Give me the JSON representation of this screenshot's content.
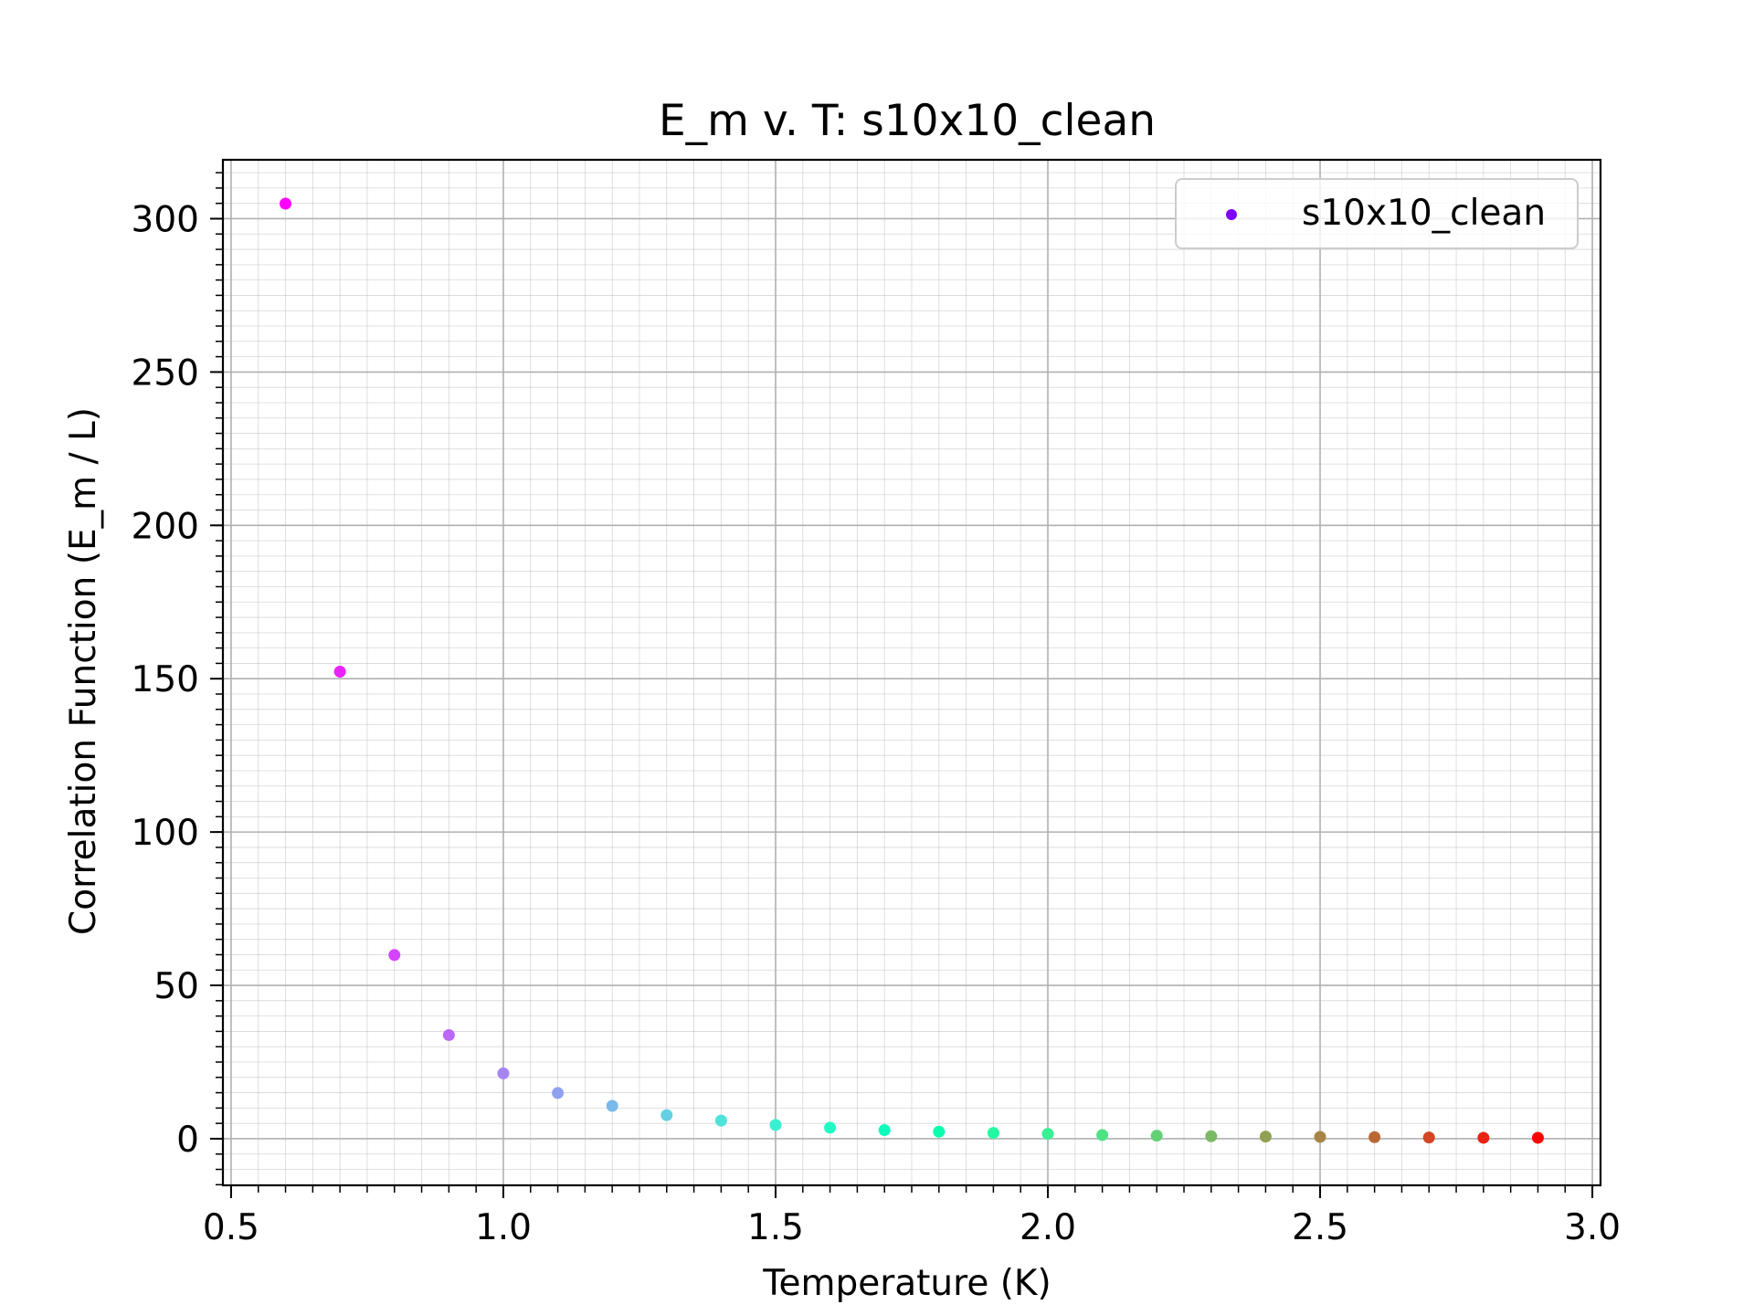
{
  "chart_data": {
    "type": "scatter",
    "title": "E_m v. T: s10x10_clean",
    "xlabel": "Temperature (K)",
    "ylabel": "Correlation Function (E_m / L)",
    "xlim": [
      0.485,
      3.015
    ],
    "ylim": [
      -15.2,
      319.2
    ],
    "xticks": [
      0.5,
      1.0,
      1.5,
      2.0,
      2.5,
      3.0
    ],
    "xtick_labels": [
      "0.5",
      "1.0",
      "1.5",
      "2.0",
      "2.5",
      "3.0"
    ],
    "yticks": [
      0,
      50,
      100,
      150,
      200,
      250,
      300
    ],
    "ytick_labels": [
      "0",
      "50",
      "100",
      "150",
      "200",
      "250",
      "300"
    ],
    "x_minor_step": 0.05,
    "y_minor_step": 5,
    "grid": true,
    "legend_position": "upper right",
    "series": [
      {
        "name": "s10x10_clean",
        "colormap": "rainbow",
        "legend_color": "#8000ff",
        "x": [
          0.6,
          0.7,
          0.8,
          0.9,
          1.0,
          1.1,
          1.2,
          1.3,
          1.4,
          1.5,
          1.6,
          1.7,
          1.8,
          1.9,
          2.0,
          2.1,
          2.2,
          2.3,
          2.4,
          2.5,
          2.6,
          2.7,
          2.8,
          2.9
        ],
        "y": [
          304.9,
          152.3,
          59.9,
          33.8,
          21.3,
          14.9,
          10.7,
          7.7,
          5.9,
          4.5,
          3.6,
          2.8,
          2.3,
          1.9,
          1.6,
          1.2,
          1.0,
          0.8,
          0.7,
          0.6,
          0.5,
          0.4,
          0.3,
          0.3
        ]
      }
    ]
  }
}
